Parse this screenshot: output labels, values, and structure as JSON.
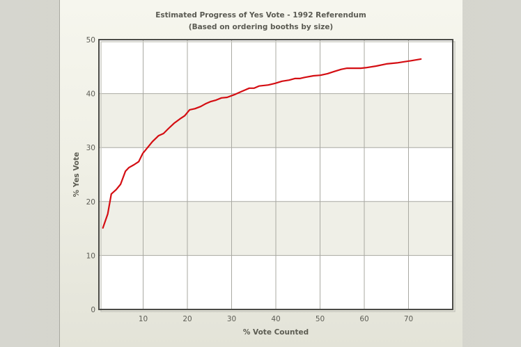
{
  "chart_data": {
    "type": "line",
    "title": "Estimated Progress of Yes Vote - 1992 Referendum",
    "subtitle": "(Based on ordering booths by size)",
    "xlabel": "% Vote Counted",
    "ylabel": "% Yes Vote",
    "xlim": [
      0,
      80
    ],
    "ylim": [
      0,
      50
    ],
    "xticks": [
      10,
      20,
      30,
      40,
      50,
      60,
      70
    ],
    "yticks": [
      0,
      10,
      20,
      30,
      40,
      50
    ],
    "grid": true,
    "legend": null,
    "bands": {
      "colors": [
        "#ffffff",
        "#efefe7"
      ],
      "note": "alternating horizontal bands every 10 units, starting white at 0-10"
    },
    "series": [
      {
        "name": "Yes Vote",
        "color": "#d40d12",
        "x": [
          0.9,
          2.0,
          2.8,
          3.9,
          4.9,
          6.0,
          6.8,
          7.9,
          9.0,
          9.9,
          11.0,
          12.1,
          13.5,
          14.6,
          15.7,
          17.0,
          18.3,
          19.4,
          20.5,
          21.7,
          23.0,
          24.1,
          25.2,
          26.5,
          27.7,
          29.0,
          30.6,
          32.0,
          33.1,
          34.0,
          35.1,
          36.2,
          38.3,
          39.8,
          41.4,
          43.0,
          44.3,
          45.4,
          46.5,
          48.5,
          50.1,
          51.7,
          53.2,
          54.8,
          56.1,
          59.2,
          60.3,
          62.7,
          65.0,
          67.4,
          69.0,
          70.6,
          72.8
        ],
        "y": [
          15.1,
          17.7,
          21.4,
          22.2,
          23.2,
          25.6,
          26.3,
          26.8,
          27.4,
          28.9,
          30.0,
          31.1,
          32.2,
          32.6,
          33.5,
          34.5,
          35.3,
          35.9,
          37.0,
          37.2,
          37.6,
          38.1,
          38.5,
          38.8,
          39.2,
          39.3,
          39.8,
          40.3,
          40.7,
          41.0,
          41.0,
          41.4,
          41.6,
          41.9,
          42.3,
          42.5,
          42.8,
          42.8,
          43.0,
          43.3,
          43.4,
          43.7,
          44.1,
          44.5,
          44.7,
          44.7,
          44.8,
          45.1,
          45.5,
          45.7,
          45.9,
          46.1,
          46.4
        ]
      }
    ]
  },
  "labels": {
    "title": "Estimated Progress of Yes Vote - 1992 Referendum",
    "subtitle": "(Based on ordering booths by size)",
    "xlabel": "% Vote Counted",
    "ylabel": "% Yes Vote",
    "xticks": [
      "10",
      "20",
      "30",
      "40",
      "50",
      "60",
      "70"
    ],
    "yticks": [
      "0",
      "10",
      "20",
      "30",
      "40",
      "50"
    ]
  }
}
